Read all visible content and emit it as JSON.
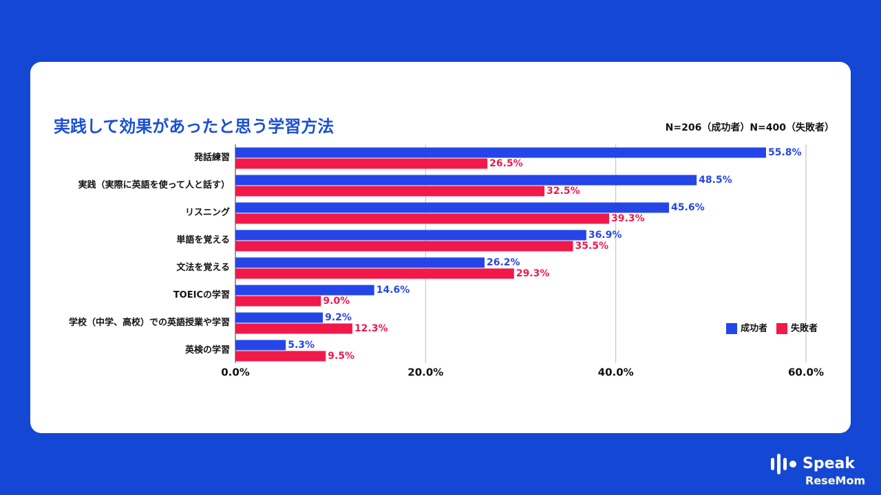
{
  "chart_data": {
    "type": "bar",
    "orientation": "horizontal",
    "title": "実践して効果があったと思う学習方法",
    "subtitle": "N=206（成功者）N=400（失敗者）",
    "categories": [
      "発話練習",
      "実践（実際に英語を使って人と話す）",
      "リスニング",
      "単語を覚える",
      "文法を覚える",
      "TOEICの学習",
      "学校（中学、高校）での英語授業や学習",
      "英検の学習"
    ],
    "series": [
      {
        "name": "成功者",
        "color": "#2446e8",
        "values": [
          55.8,
          48.5,
          45.6,
          36.9,
          26.2,
          14.6,
          9.2,
          5.3
        ],
        "value_labels": [
          "55.8%",
          "48.5%",
          "45.6%",
          "36.9%",
          "26.2%",
          "14.6%",
          "9.2%",
          "5.3%"
        ]
      },
      {
        "name": "失敗者",
        "color": "#f0194a",
        "values": [
          26.5,
          32.5,
          39.3,
          35.5,
          29.3,
          9.0,
          12.3,
          9.5
        ],
        "value_labels": [
          "26.5%",
          "32.5%",
          "39.3%",
          "35.5%",
          "29.3%",
          "9.0%",
          "12.3%",
          "9.5%"
        ]
      }
    ],
    "xlim": [
      0,
      60
    ],
    "xticks": [
      {
        "value": 0,
        "label": "0.0%"
      },
      {
        "value": 20,
        "label": "20.0%"
      },
      {
        "value": 40,
        "label": "40.0%"
      },
      {
        "value": 60,
        "label": "60.0%"
      }
    ],
    "grid": true,
    "legend": "right"
  },
  "logos": [
    "Speak",
    "ReseMom"
  ]
}
